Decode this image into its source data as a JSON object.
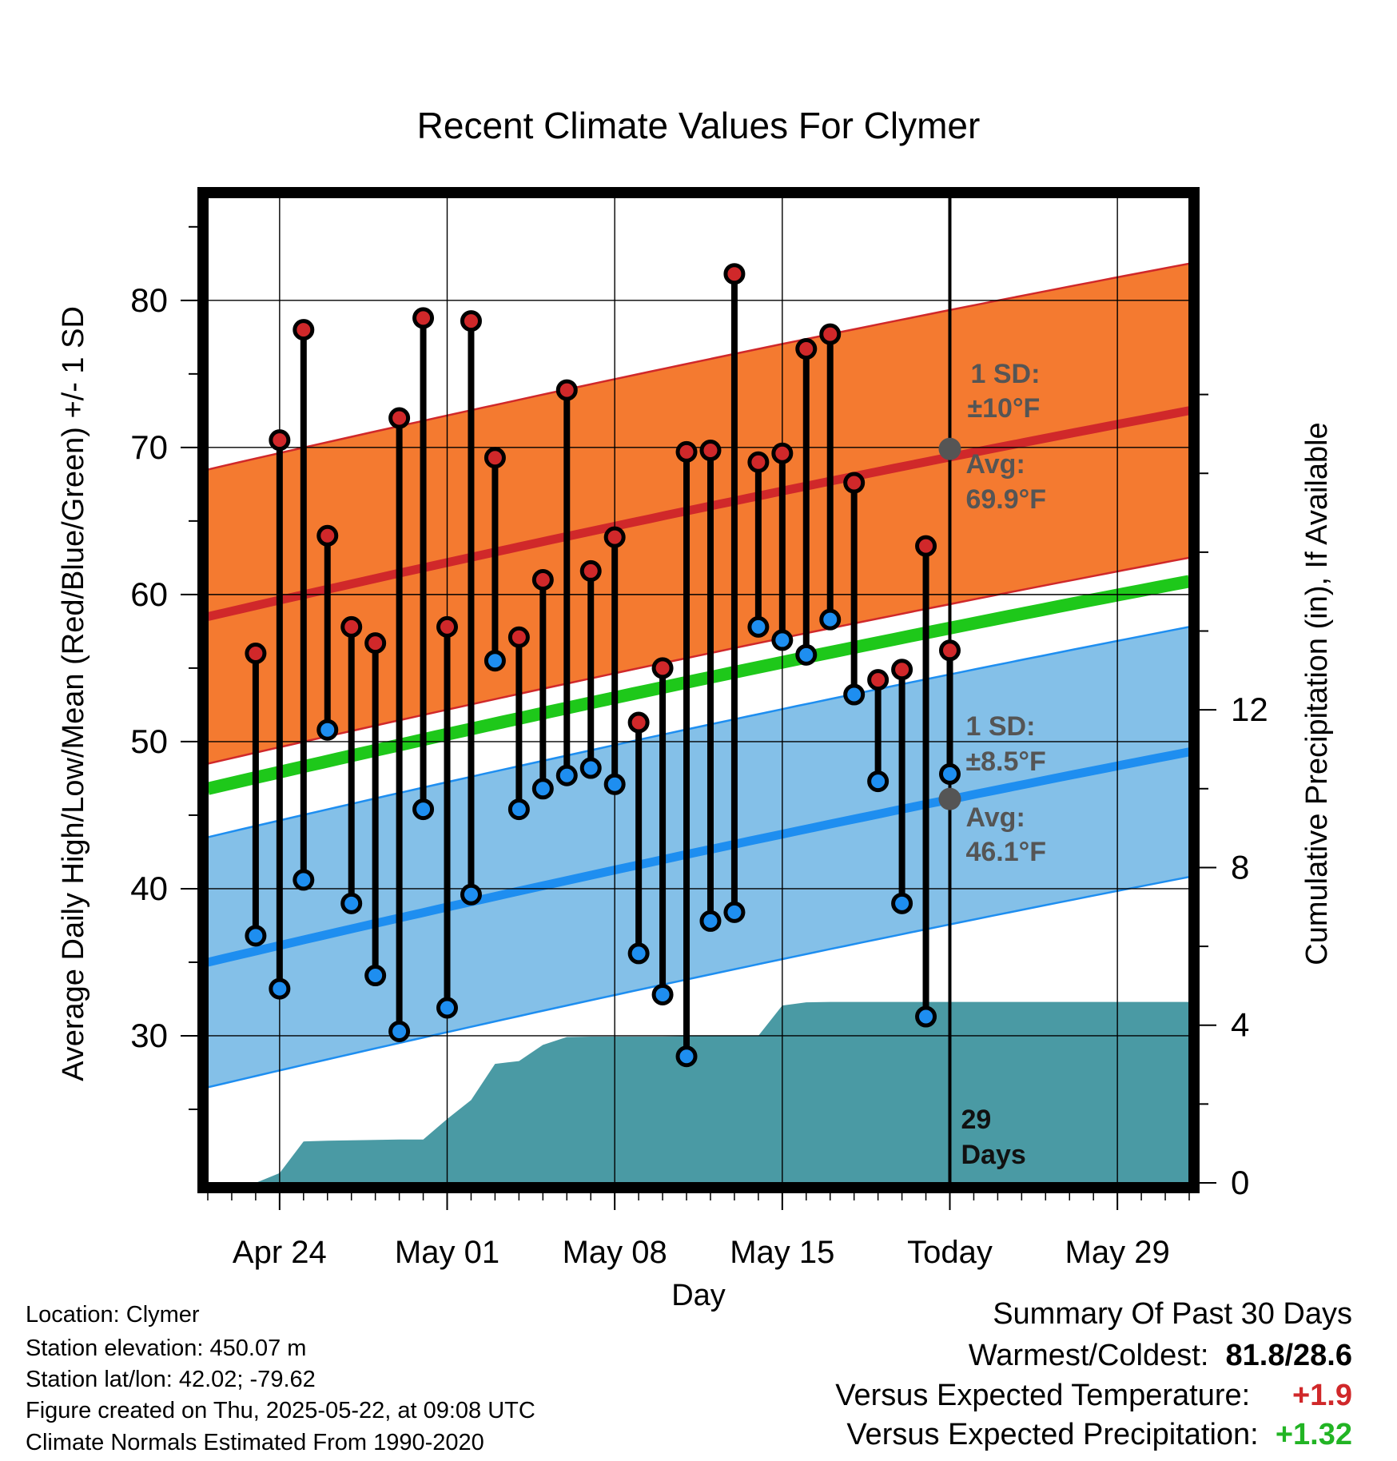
{
  "chart_data": {
    "type": "line",
    "title": "Recent Climate Values For Clymer",
    "xlabel": "Day",
    "ylabel": "Average Daily High/Low/Mean (Red/Blue/Green) +/- 1 SD",
    "y2label": "Cumulative Precipitation (in), If Available",
    "x_ticks": [
      "Apr 24",
      "May 01",
      "May 08",
      "May 15",
      "Today",
      "May 29"
    ],
    "ylim": [
      20,
      87
    ],
    "y_ticks": [
      30,
      40,
      50,
      60,
      70,
      80
    ],
    "y2lim": [
      0,
      25
    ],
    "y2_ticks": [
      0,
      4,
      8,
      12
    ],
    "grid": true,
    "x_start": "Apr 21",
    "x_today": "May 22",
    "x_end": "Jun 01",
    "today_label": [
      "29",
      "Days"
    ],
    "highs": [
      56.0,
      70.5,
      78.0,
      64.0,
      57.8,
      56.7,
      72.0,
      78.8,
      57.8,
      78.6,
      69.3,
      57.1,
      61.0,
      73.9,
      61.6,
      63.9,
      51.3,
      55.0,
      69.7,
      69.8,
      81.8,
      69.0,
      69.6,
      76.7,
      77.7,
      67.6,
      54.2,
      54.9,
      63.3,
      56.2
    ],
    "lows": [
      36.8,
      33.2,
      40.6,
      50.8,
      39.0,
      34.1,
      30.3,
      45.4,
      31.9,
      39.6,
      55.5,
      45.4,
      46.8,
      47.7,
      48.2,
      47.1,
      35.6,
      32.8,
      28.6,
      37.8,
      38.4,
      57.8,
      56.9,
      55.9,
      58.3,
      53.2,
      47.3,
      39.0,
      31.3,
      47.8
    ],
    "normal_high": {
      "start": 58.5,
      "end": 72.5
    },
    "normal_low": {
      "start": 35.0,
      "end": 49.3
    },
    "normal_mean": {
      "start": 46.8,
      "end": 60.9
    },
    "high_sd_annotation": {
      "label": "1 SD:",
      "value": "±10°F"
    },
    "high_avg_annotation": {
      "label": "Avg:",
      "value": "69.9°F"
    },
    "low_sd_annotation": {
      "label": "1 SD:",
      "value": "±8.5°F"
    },
    "low_avg_annotation": {
      "label": "Avg:",
      "value": "46.1°F"
    },
    "today_high_avg": 69.9,
    "today_low_avg": 46.1,
    "high_sd": 10,
    "low_sd": 8.5,
    "cumulative_precip": [
      0,
      0,
      0,
      0.25,
      1.05,
      1.07,
      1.08,
      1.09,
      1.1,
      1.1,
      1.62,
      2.1,
      3.02,
      3.09,
      3.5,
      3.7,
      3.71,
      3.71,
      3.71,
      3.71,
      3.72,
      3.72,
      3.73,
      3.73,
      4.5,
      4.58,
      4.59,
      4.59,
      4.59,
      4.59,
      4.59,
      4.59,
      4.59,
      4.59,
      4.59,
      4.59,
      4.59,
      4.59,
      4.59,
      4.59,
      4.59,
      4.59
    ],
    "colors": {
      "high_band": "#f47a30",
      "high_line": "#d0282a",
      "low_band": "#84c0e8",
      "low_line": "#1e8ef0",
      "mean_line": "#1ec81a",
      "precip": "#4a9aa4",
      "high_dot": "#d0282a",
      "low_dot": "#1e8ef0",
      "annotation": "#555555"
    }
  },
  "meta": {
    "location": "Location: Clymer",
    "elevation": "Station elevation: 450.07 m",
    "latlon": "Station lat/lon: 42.02; -79.62",
    "created": "Figure created on Thu, 2025-05-22, at 09:08 UTC",
    "normals": "Climate Normals Estimated From 1990-2020"
  },
  "summary": {
    "title": "Summary Of Past 30 Days",
    "warm_cold_label": "Warmest/Coldest:",
    "warm_cold_value": "81.8/28.6",
    "temp_label": "Versus Expected Temperature:",
    "temp_value": "+1.9",
    "precip_label": "Versus Expected Precipitation:",
    "precip_value": "+1.32"
  }
}
